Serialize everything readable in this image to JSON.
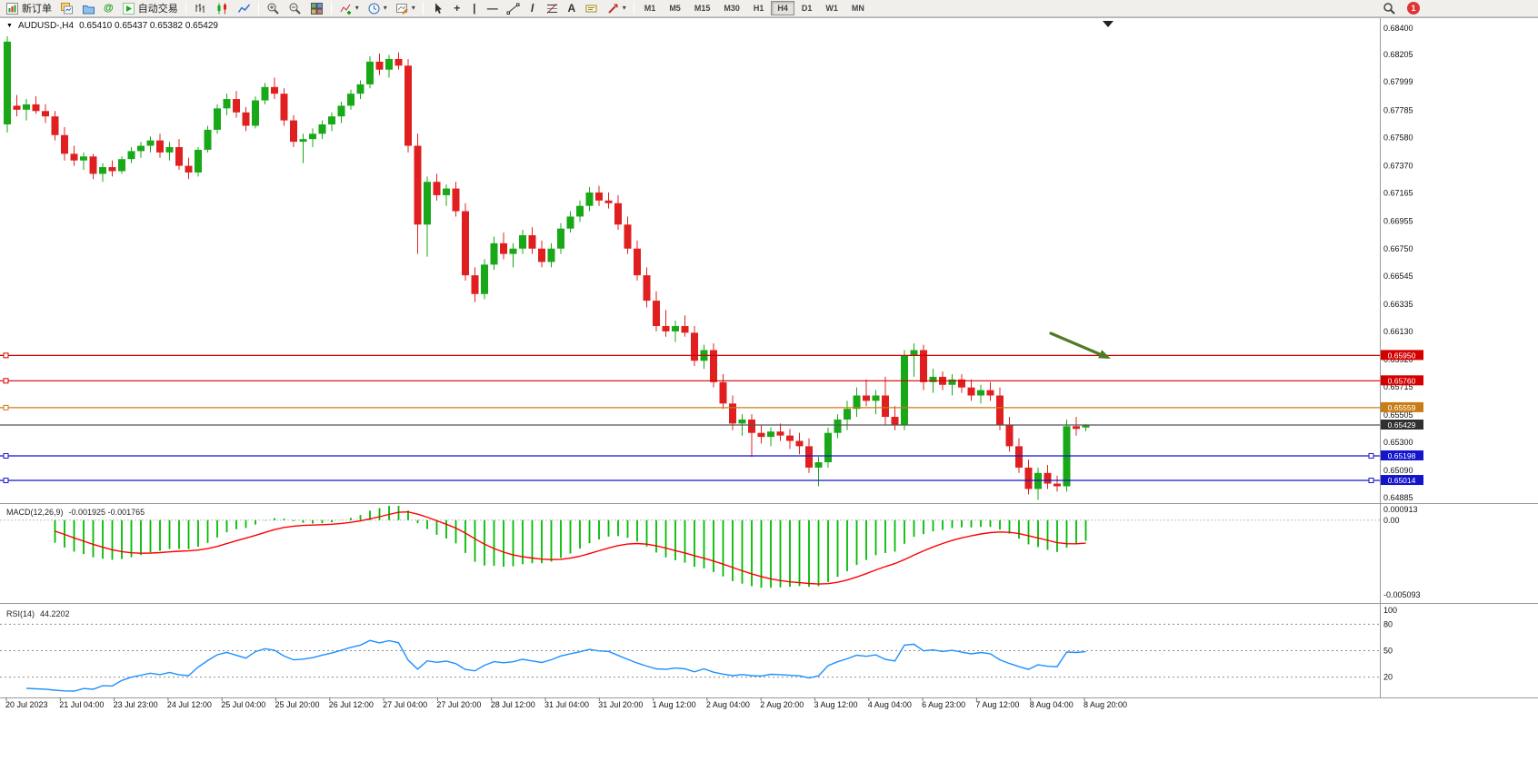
{
  "icons": {
    "triangle_down": "▼",
    "dropdown": "▾",
    "at_sign": "@",
    "plus": "+",
    "vertical_bar": "|",
    "dash": "—",
    "slash": "/",
    "double_slash": "//",
    "letter_a": "A"
  },
  "toolbar": {
    "new_order_label": "新订单",
    "auto_trading_label": "自动交易",
    "timeframes": [
      "M1",
      "M5",
      "M15",
      "M30",
      "H1",
      "H4",
      "D1",
      "W1",
      "MN"
    ],
    "active_timeframe": "H4",
    "notification_count": "1"
  },
  "chart": {
    "title": "AUDUSD-,H4",
    "ohlc": "0.65410 0.65437 0.65382 0.65429"
  },
  "chart_data": {
    "type": "candlestick",
    "symbol": "AUDUSD-",
    "period": "H4",
    "open": "0.65410",
    "high": "0.65437",
    "low": "0.65382",
    "close": "0.65429",
    "price_scale": {
      "min": 0.64851,
      "max": 0.68462
    },
    "price_axis_labels": [
      "0.68400",
      "0.68205",
      "0.67999",
      "0.67785",
      "0.67580",
      "0.67370",
      "0.67165",
      "0.66955",
      "0.66750",
      "0.66545",
      "0.66335",
      "0.66130",
      "0.65920",
      "0.65715",
      "0.65505",
      "0.65300",
      "0.65090",
      "0.64885"
    ],
    "time_axis_labels": [
      "20 Jul 2023",
      "21 Jul 04:00",
      "23 Jul 23:00",
      "24 Jul 12:00",
      "25 Jul 04:00",
      "25 Jul 20:00",
      "26 Jul 12:00",
      "27 Jul 04:00",
      "27 Jul 20:00",
      "28 Jul 12:00",
      "31 Jul 04:00",
      "31 Jul 20:00",
      "1 Aug 12:00",
      "2 Aug 04:00",
      "2 Aug 20:00",
      "3 Aug 12:00",
      "4 Aug 04:00",
      "6 Aug 23:00",
      "7 Aug 12:00",
      "8 Aug 04:00",
      "8 Aug 20:00"
    ],
    "horizontal_lines": [
      {
        "price": 0.6595,
        "label": "0.65950",
        "color": "#d40000",
        "handles": "l"
      },
      {
        "price": 0.6576,
        "label": "0.65760",
        "color": "#d40000",
        "handles": "l"
      },
      {
        "price": 0.65559,
        "label": "0.65559",
        "color": "#c87e14",
        "handles": "l"
      },
      {
        "price": 0.65429,
        "label": "0.65429",
        "color": "#555555",
        "badge": "#303030",
        "bid": true
      },
      {
        "price": 0.65198,
        "label": "0.65198",
        "color": "#1414cc",
        "handles": "lr"
      },
      {
        "price": 0.65014,
        "label": "0.65014",
        "color": "#1414cc",
        "handles": "lr"
      }
    ],
    "candles": [
      [
        0.6768,
        0.6834,
        0.6762,
        0.683
      ],
      [
        0.6782,
        0.679,
        0.6774,
        0.6779
      ],
      [
        0.6779,
        0.6787,
        0.6771,
        0.6783
      ],
      [
        0.6783,
        0.6789,
        0.6776,
        0.6778
      ],
      [
        0.6778,
        0.6783,
        0.6769,
        0.6774
      ],
      [
        0.6774,
        0.6778,
        0.6756,
        0.676
      ],
      [
        0.676,
        0.6766,
        0.6741,
        0.6746
      ],
      [
        0.6746,
        0.6752,
        0.6737,
        0.6741
      ],
      [
        0.6741,
        0.6747,
        0.6734,
        0.6744
      ],
      [
        0.6744,
        0.6746,
        0.6727,
        0.6731
      ],
      [
        0.6731,
        0.6739,
        0.6725,
        0.6736
      ],
      [
        0.6736,
        0.6741,
        0.6729,
        0.6733
      ],
      [
        0.6733,
        0.6744,
        0.6731,
        0.6742
      ],
      [
        0.6742,
        0.6751,
        0.6739,
        0.6748
      ],
      [
        0.6748,
        0.6755,
        0.6743,
        0.6752
      ],
      [
        0.6752,
        0.6759,
        0.6747,
        0.6756
      ],
      [
        0.6756,
        0.6761,
        0.6743,
        0.6747
      ],
      [
        0.6747,
        0.6755,
        0.6741,
        0.6751
      ],
      [
        0.6751,
        0.6757,
        0.6734,
        0.6737
      ],
      [
        0.6737,
        0.6743,
        0.6727,
        0.6732
      ],
      [
        0.6732,
        0.6751,
        0.6729,
        0.6749
      ],
      [
        0.6749,
        0.6767,
        0.6747,
        0.6764
      ],
      [
        0.6764,
        0.6783,
        0.6761,
        0.678
      ],
      [
        0.678,
        0.6791,
        0.6775,
        0.6787
      ],
      [
        0.6787,
        0.6793,
        0.6773,
        0.6777
      ],
      [
        0.6777,
        0.6781,
        0.6763,
        0.6767
      ],
      [
        0.6767,
        0.6789,
        0.6765,
        0.6786
      ],
      [
        0.6786,
        0.6799,
        0.6783,
        0.6796
      ],
      [
        0.6796,
        0.6803,
        0.6787,
        0.6791
      ],
      [
        0.6791,
        0.6795,
        0.6767,
        0.6771
      ],
      [
        0.6771,
        0.6775,
        0.6751,
        0.6755
      ],
      [
        0.6755,
        0.6761,
        0.6739,
        0.6757
      ],
      [
        0.6757,
        0.6765,
        0.6751,
        0.6761
      ],
      [
        0.6761,
        0.6771,
        0.6757,
        0.6768
      ],
      [
        0.6768,
        0.6777,
        0.6763,
        0.6774
      ],
      [
        0.6774,
        0.6785,
        0.6769,
        0.6782
      ],
      [
        0.6782,
        0.6794,
        0.6779,
        0.6791
      ],
      [
        0.6791,
        0.6801,
        0.6787,
        0.6798
      ],
      [
        0.6798,
        0.6819,
        0.6795,
        0.6815
      ],
      [
        0.6815,
        0.6821,
        0.6805,
        0.6809
      ],
      [
        0.6809,
        0.682,
        0.6803,
        0.6817
      ],
      [
        0.6817,
        0.6822,
        0.6809,
        0.6812
      ],
      [
        0.6812,
        0.6817,
        0.6747,
        0.6752
      ],
      [
        0.6752,
        0.6761,
        0.6671,
        0.6693
      ],
      [
        0.6693,
        0.6729,
        0.6669,
        0.6725
      ],
      [
        0.6725,
        0.6731,
        0.6711,
        0.6715
      ],
      [
        0.6715,
        0.6723,
        0.6707,
        0.672
      ],
      [
        0.672,
        0.6725,
        0.6699,
        0.6703
      ],
      [
        0.6703,
        0.6709,
        0.6651,
        0.6655
      ],
      [
        0.6655,
        0.6661,
        0.6635,
        0.6641
      ],
      [
        0.6641,
        0.6667,
        0.6637,
        0.6663
      ],
      [
        0.6663,
        0.6684,
        0.6659,
        0.6679
      ],
      [
        0.6679,
        0.6687,
        0.6667,
        0.6671
      ],
      [
        0.6671,
        0.6679,
        0.6661,
        0.6675
      ],
      [
        0.6675,
        0.6689,
        0.6671,
        0.6685
      ],
      [
        0.6685,
        0.6691,
        0.6671,
        0.6675
      ],
      [
        0.6675,
        0.6681,
        0.6661,
        0.6665
      ],
      [
        0.6665,
        0.6679,
        0.6661,
        0.6675
      ],
      [
        0.6675,
        0.6694,
        0.6671,
        0.669
      ],
      [
        0.669,
        0.6703,
        0.6687,
        0.6699
      ],
      [
        0.6699,
        0.6711,
        0.6695,
        0.6707
      ],
      [
        0.6707,
        0.6721,
        0.6703,
        0.6717
      ],
      [
        0.6717,
        0.6722,
        0.6707,
        0.6711
      ],
      [
        0.6711,
        0.6717,
        0.6705,
        0.6709
      ],
      [
        0.6709,
        0.6715,
        0.6689,
        0.6693
      ],
      [
        0.6693,
        0.6699,
        0.6671,
        0.6675
      ],
      [
        0.6675,
        0.6681,
        0.6651,
        0.6655
      ],
      [
        0.6655,
        0.6661,
        0.6631,
        0.6636
      ],
      [
        0.6636,
        0.6643,
        0.6613,
        0.6617
      ],
      [
        0.6617,
        0.6629,
        0.6609,
        0.6613
      ],
      [
        0.6613,
        0.6621,
        0.6605,
        0.6617
      ],
      [
        0.6617,
        0.6625,
        0.6609,
        0.6612
      ],
      [
        0.6612,
        0.6617,
        0.6587,
        0.6591
      ],
      [
        0.6591,
        0.6603,
        0.6585,
        0.6599
      ],
      [
        0.6599,
        0.6604,
        0.6571,
        0.6575
      ],
      [
        0.6575,
        0.6581,
        0.6555,
        0.6559
      ],
      [
        0.6559,
        0.6565,
        0.6539,
        0.6544
      ],
      [
        0.6544,
        0.6551,
        0.6535,
        0.6547
      ],
      [
        0.6547,
        0.6551,
        0.6519,
        0.6537
      ],
      [
        0.6537,
        0.6543,
        0.6529,
        0.6534
      ],
      [
        0.6534,
        0.6541,
        0.6527,
        0.6538
      ],
      [
        0.6538,
        0.6544,
        0.6531,
        0.6535
      ],
      [
        0.6535,
        0.654,
        0.6525,
        0.6531
      ],
      [
        0.6531,
        0.6537,
        0.6521,
        0.6527
      ],
      [
        0.6527,
        0.6533,
        0.6507,
        0.6511
      ],
      [
        0.6511,
        0.6519,
        0.6497,
        0.6515
      ],
      [
        0.6515,
        0.6541,
        0.6511,
        0.6537
      ],
      [
        0.6537,
        0.6551,
        0.6533,
        0.6547
      ],
      [
        0.6547,
        0.6561,
        0.6539,
        0.6555
      ],
      [
        0.6555,
        0.6571,
        0.6549,
        0.6565
      ],
      [
        0.6565,
        0.6577,
        0.6557,
        0.6561
      ],
      [
        0.6561,
        0.6569,
        0.6551,
        0.6565
      ],
      [
        0.6565,
        0.6579,
        0.6543,
        0.6549
      ],
      [
        0.6549,
        0.6557,
        0.6539,
        0.6543
      ],
      [
        0.6543,
        0.6599,
        0.6539,
        0.6595
      ],
      [
        0.6595,
        0.6604,
        0.6579,
        0.6599
      ],
      [
        0.6599,
        0.6603,
        0.6569,
        0.6575
      ],
      [
        0.6575,
        0.6585,
        0.6567,
        0.6579
      ],
      [
        0.6579,
        0.6583,
        0.6569,
        0.6573
      ],
      [
        0.6573,
        0.6581,
        0.6565,
        0.6577
      ],
      [
        0.6577,
        0.6581,
        0.6567,
        0.6571
      ],
      [
        0.6571,
        0.6577,
        0.6561,
        0.6565
      ],
      [
        0.6565,
        0.6573,
        0.6559,
        0.6569
      ],
      [
        0.6569,
        0.6575,
        0.6561,
        0.6565
      ],
      [
        0.6565,
        0.6571,
        0.6539,
        0.6543
      ],
      [
        0.6543,
        0.6549,
        0.6523,
        0.6527
      ],
      [
        0.6527,
        0.6533,
        0.6507,
        0.6511
      ],
      [
        0.6511,
        0.6517,
        0.6491,
        0.6495
      ],
      [
        0.6495,
        0.6511,
        0.6487,
        0.6507
      ],
      [
        0.6507,
        0.6513,
        0.6495,
        0.6499
      ],
      [
        0.6499,
        0.6505,
        0.6493,
        0.6497
      ],
      [
        0.6497,
        0.6547,
        0.6493,
        0.6542
      ],
      [
        0.6542,
        0.6549,
        0.6535,
        0.654
      ],
      [
        0.6541,
        0.65437,
        0.65382,
        0.65429
      ]
    ],
    "indicators": {
      "macd": {
        "label": "MACD(12,26,9)",
        "values": "-0.001925 -0.001765",
        "axis_labels": [
          "0.000913",
          "0.00",
          "-0.005093"
        ],
        "max": 0.000913,
        "min": -0.005093,
        "fast": 12,
        "slow": 26,
        "signal": 9
      },
      "rsi": {
        "label": "RSI(14)",
        "value": "44.2202",
        "axis_labels": [
          "100",
          "80",
          "50",
          "20"
        ],
        "levels": [
          80,
          50,
          20
        ],
        "period": 14
      }
    },
    "colors": {
      "up": "#18a818",
      "down": "#e02020",
      "macd_histogram": "#00bb00",
      "macd_signal": "#ff0000",
      "rsi": "#1e90ff",
      "arrow": "#4e7b24"
    }
  }
}
